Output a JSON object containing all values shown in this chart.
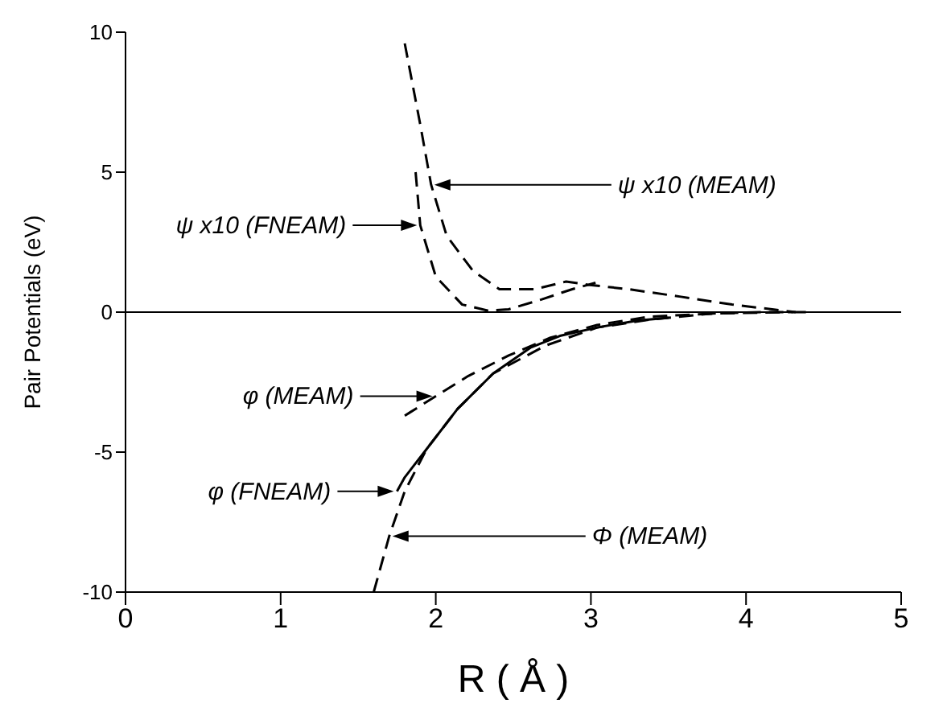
{
  "chart_data": {
    "type": "line",
    "xlabel": "R ( Å )",
    "ylabel": "Pair Potentials (eV)",
    "xlim": [
      0,
      5
    ],
    "xticks": [
      0,
      1,
      2,
      3,
      4,
      5
    ],
    "ylim": [
      -10,
      10
    ],
    "yticks": [
      -10,
      -5,
      0,
      5,
      10
    ],
    "grid": false,
    "legend": false,
    "marker": "none",
    "ref_lines": [
      {
        "axis": "y",
        "value": 0,
        "color": "#000000"
      }
    ],
    "annotations": [
      "ψ  x10 (MEAM)",
      "ψ  x10 (FNEAM)",
      "φ  (MEAM)",
      "φ  (FNEAM)",
      "Φ  (MEAM)"
    ],
    "series": [
      {
        "color": "#000000",
        "line_style": "dashed",
        "x": [
          1.8,
          1.9,
          1.97,
          2.07,
          2.24,
          2.41,
          2.64,
          2.84,
          2.98,
          3.24,
          3.58,
          3.91,
          4.32
        ],
        "values": [
          9.6,
          6.7,
          4.55,
          2.73,
          1.47,
          0.82,
          0.82,
          1.09,
          0.98,
          0.82,
          0.55,
          0.27,
          0
        ]
      },
      {
        "color": "#000000",
        "line_style": "dashed",
        "x": [
          1.87,
          1.9,
          2.0,
          2.17,
          2.34,
          2.47,
          2.68,
          2.88,
          3.03
        ],
        "values": [
          5.0,
          3.1,
          1.27,
          0.27,
          0.05,
          0.1,
          0.45,
          0.82,
          1.05
        ]
      },
      {
        "color": "#000000",
        "line_style": "dashed",
        "x": [
          1.8,
          2.0,
          2.21,
          2.47,
          2.74,
          3.04,
          3.38,
          3.8,
          4.3
        ],
        "values": [
          -3.7,
          -3.0,
          -2.28,
          -1.55,
          -0.91,
          -0.46,
          -0.16,
          -0.05,
          0
        ]
      },
      {
        "color": "#000000",
        "line_style": "solid",
        "x": [
          1.75,
          1.8,
          1.94,
          2.14,
          2.37,
          2.61,
          2.8,
          3.04,
          3.3,
          3.5
        ],
        "values": [
          -6.4,
          -5.9,
          -4.9,
          -3.46,
          -2.19,
          -1.27,
          -0.85,
          -0.55,
          -0.3,
          -0.2
        ]
      },
      {
        "color": "#000000",
        "line_style": "dashed",
        "x": [
          1.6,
          1.7,
          1.8,
          1.94,
          2.14,
          2.37,
          2.71,
          3.04,
          3.38,
          3.78,
          4.1,
          4.4
        ],
        "values": [
          -10,
          -8.0,
          -6.4,
          -4.9,
          -3.46,
          -2.19,
          -1.19,
          -0.55,
          -0.27,
          -0.05,
          0,
          0
        ]
      }
    ]
  }
}
